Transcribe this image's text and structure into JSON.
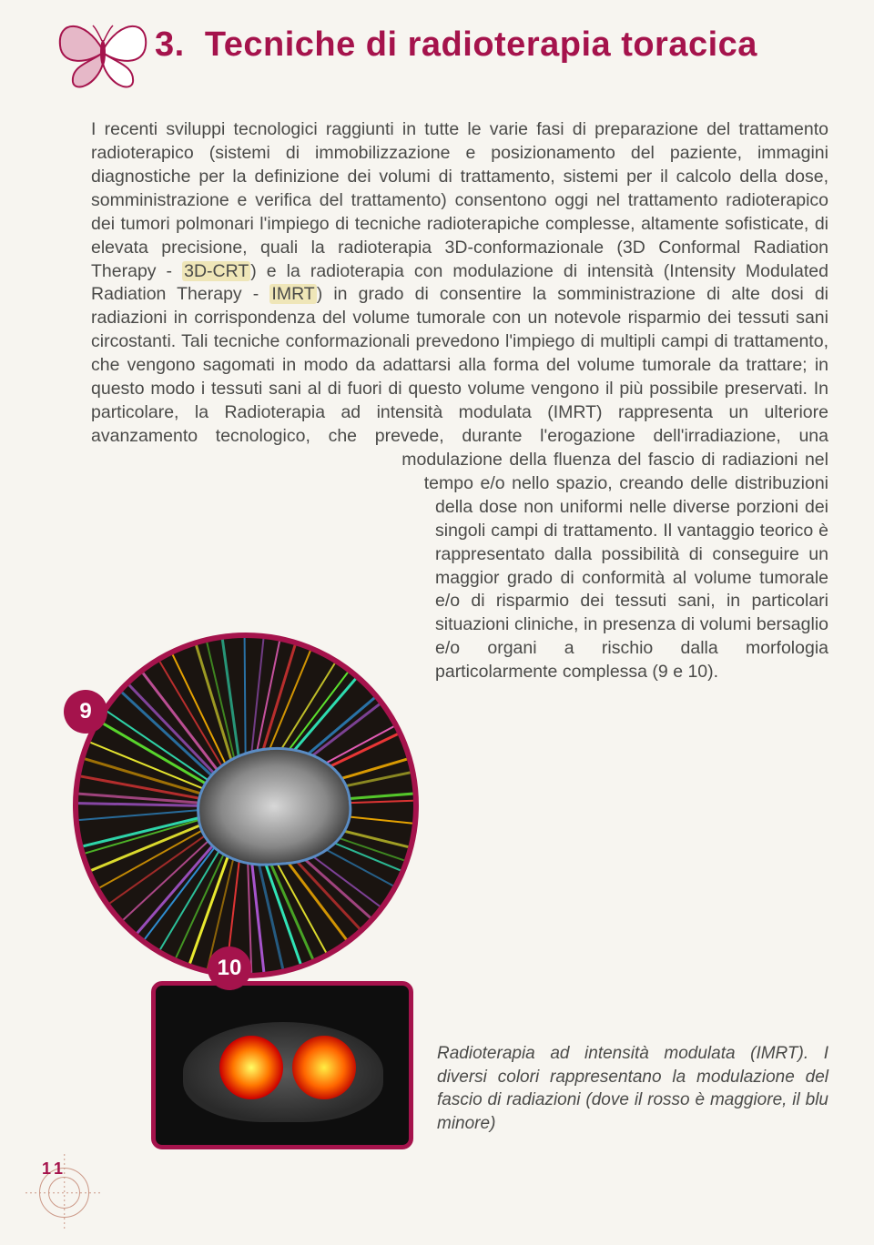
{
  "accent_color": "#a5134c",
  "bg_color": "#f7f5f0",
  "text_color": "#4a4a48",
  "highlight_bg": "#efe6b8",
  "section": {
    "number": "3.",
    "title": "Tecniche di radioterapia toracica"
  },
  "body": {
    "p1a": "I recenti sviluppi tecnologici raggiunti in tutte le varie fasi di preparazione del trattamento radioterapico (sistemi di immobilizzazione e posizionamento del paziente, immagini diagnostiche per la definizione dei volumi di trattamento, sistemi per il calcolo della dose, somministrazione e verifica del trattamento) consentono oggi nel trattamento radioterapico dei tumori polmonari l'impiego di tecniche radioterapiche complesse, altamente sofisticate, di elevata precisione, quali la radioterapia 3D-conformazionale (3D Conformal Radiation Therapy - ",
    "hl1": "3D-CRT",
    "p1b": ") e la radioterapia con modulazione di intensità (Intensity Modulated Radiation Therapy - ",
    "hl2": "IMRT",
    "p1c": ") in grado di consentire la somministrazione di alte dosi di radiazioni in corrispondenza del volume tumorale con un notevole risparmio dei tessuti sani circostanti. Tali tecniche conformazionali prevedono l'impiego di multipli campi di trattamento, che vengono sagomati in modo da adattarsi alla forma del volume tumorale da trattare; in questo modo i tessuti sani al di fuori di questo volume vengono il più possibile preservati. In particolare, la Radioterapia ad intensità modulata (IMRT) rappresenta un ulteriore avanzamento tecnologico, che prevede, durante l'erogazione dell'irradiazione, una modulazione della fluenza del fascio di radiazioni nel tempo e/o nello spazio, creando delle distribuzioni della dose non uniformi nelle diverse porzioni dei singoli campi di trattamento. Il vantaggio teorico è rappresentato dalla possibilità di conseguire un maggior grado di conformità al volume tumorale e/o di risparmio dei tessuti sani, in particolari situazioni cliniche, in presenza di volumi bersaglio e/o organi a rischio dalla morfologia particolarmente complessa (9 e 10)."
  },
  "badges": {
    "fig9": "9",
    "fig10": "10"
  },
  "caption": "Radioterapia ad intensità modulata (IMRT). I diversi colori rappresentano la modulazione del fascio di radiazioni (dove il rosso è maggiore, il blu minore)",
  "page_number": "11",
  "beam_plan": {
    "colors": [
      "#ff3a3a",
      "#ffb400",
      "#ffff33",
      "#66ff33",
      "#33ffcc",
      "#33aaff",
      "#cc66ff",
      "#ff66cc"
    ],
    "count": 60
  }
}
